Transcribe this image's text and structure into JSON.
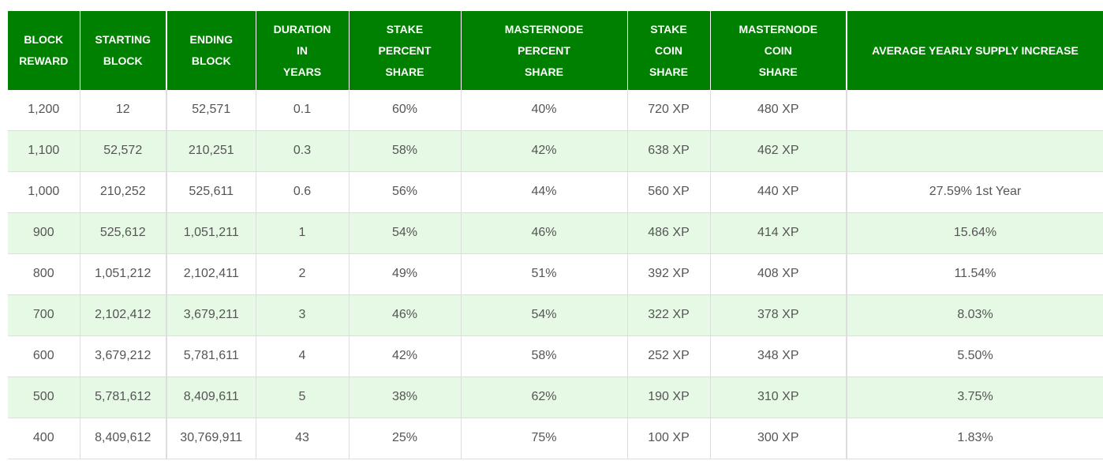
{
  "table": {
    "headers": [
      [
        "BLOCK",
        "REWARD"
      ],
      [
        "STARTING",
        "BLOCK"
      ],
      [
        "ENDING",
        "BLOCK"
      ],
      [
        "DURATION",
        "IN",
        "YEARS"
      ],
      [
        "STAKE",
        "PERCENT",
        "SHARE"
      ],
      [
        "MASTERNODE",
        "PERCENT",
        "SHARE"
      ],
      [
        "STAKE",
        "COIN",
        "SHARE"
      ],
      [
        "MASTERNODE",
        "COIN",
        "SHARE"
      ],
      [
        "AVERAGE YEARLY SUPPLY INCREASE"
      ]
    ],
    "rows": [
      [
        "1,200",
        "12",
        "52,571",
        "0.1",
        "60%",
        "40%",
        "720 XP",
        "480 XP",
        ""
      ],
      [
        "1,100",
        "52,572",
        "210,251",
        "0.3",
        "58%",
        "42%",
        "638 XP",
        "462 XP",
        ""
      ],
      [
        "1,000",
        "210,252",
        "525,611",
        "0.6",
        "56%",
        "44%",
        "560 XP",
        "440 XP",
        "27.59% 1st Year"
      ],
      [
        "900",
        "525,612",
        "1,051,211",
        "1",
        "54%",
        "46%",
        "486 XP",
        "414 XP",
        "15.64%"
      ],
      [
        "800",
        "1,051,212",
        "2,102,411",
        "2",
        "49%",
        "51%",
        "392 XP",
        "408 XP",
        "11.54%"
      ],
      [
        "700",
        "2,102,412",
        "3,679,211",
        "3",
        "46%",
        "54%",
        "322 XP",
        "378 XP",
        "8.03%"
      ],
      [
        "600",
        "3,679,212",
        "5,781,611",
        "4",
        "42%",
        "58%",
        "252 XP",
        "348 XP",
        "5.50%"
      ],
      [
        "500",
        "5,781,612",
        "8,409,611",
        "5",
        "38%",
        "62%",
        "190 XP",
        "310 XP",
        "3.75%"
      ],
      [
        "400",
        "8,409,612",
        "30,769,911",
        "43",
        "25%",
        "75%",
        "100 XP",
        "300 XP",
        "1.83%"
      ]
    ]
  },
  "colors": {
    "header_bg": "#008000",
    "header_text": "#ffffff",
    "stripe_bg": "#e5f9e5",
    "cell_text": "#555555"
  }
}
